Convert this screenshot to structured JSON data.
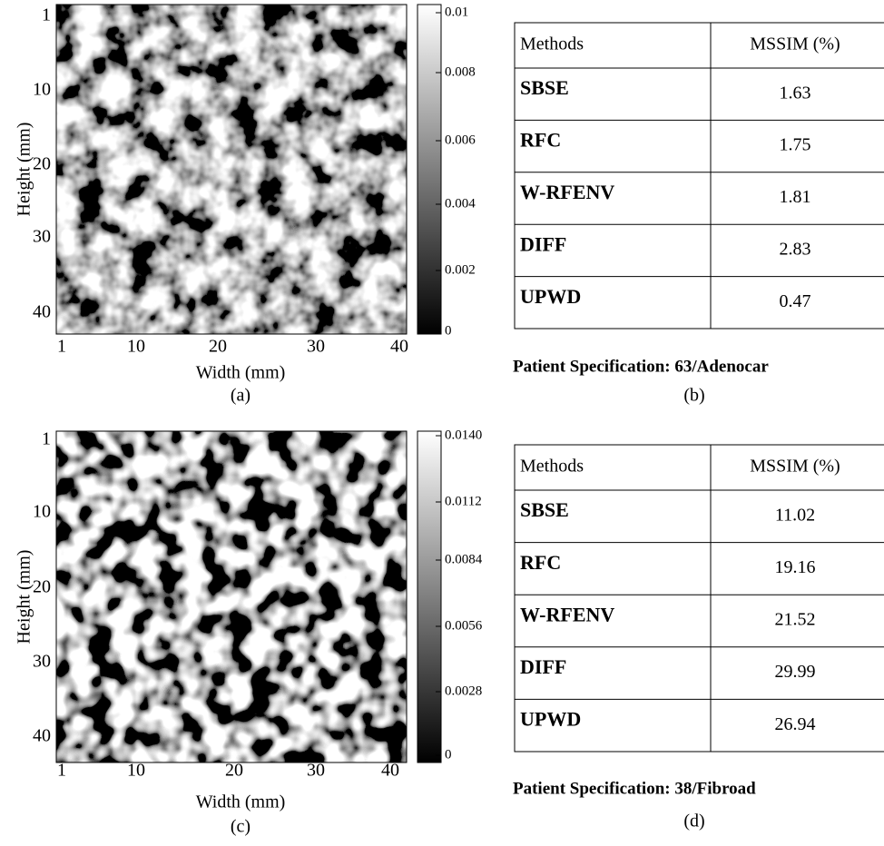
{
  "panels": [
    {
      "y_axis_label": "Height (mm)",
      "x_axis_label": "Width (mm)",
      "y_ticks": [
        "1",
        "10",
        "20",
        "30",
        "40"
      ],
      "x_ticks": [
        "1",
        "10",
        "20",
        "30",
        "40"
      ],
      "colorbar_ticks": [
        "0.01",
        "0.008",
        "0.006",
        "0.004",
        "0.002",
        "0"
      ],
      "caption": "(a)"
    },
    {
      "y_axis_label": "Height (mm)",
      "x_axis_label": "Width (mm)",
      "y_ticks": [
        "1",
        "10",
        "20",
        "30",
        "40"
      ],
      "x_ticks": [
        "1",
        "10",
        "20",
        "30",
        "40"
      ],
      "colorbar_ticks": [
        "0.0140",
        "0.0112",
        "0.0084",
        "0.0056",
        "0.0028",
        "0"
      ],
      "caption": "(c)"
    }
  ],
  "tables": [
    {
      "columns": [
        "Methods",
        "MSSIM (%)"
      ],
      "rows": [
        [
          "SBSE",
          "1.63"
        ],
        [
          "RFC",
          "1.75"
        ],
        [
          "W-RFENV",
          "1.81"
        ],
        [
          "DIFF",
          "2.83"
        ],
        [
          "UPWD",
          "0.47"
        ]
      ],
      "note": "Patient Specification: 63/Adenocar",
      "caption": "(b)"
    },
    {
      "columns": [
        "Methods",
        "MSSIM (%)"
      ],
      "rows": [
        [
          "SBSE",
          "11.02"
        ],
        [
          "RFC",
          "19.16"
        ],
        [
          "W-RFENV",
          "21.52"
        ],
        [
          "DIFF",
          "29.99"
        ],
        [
          "UPWD",
          "26.94"
        ]
      ],
      "note": "Patient Specification: 38/Fibroad",
      "caption": "(d)"
    }
  ]
}
